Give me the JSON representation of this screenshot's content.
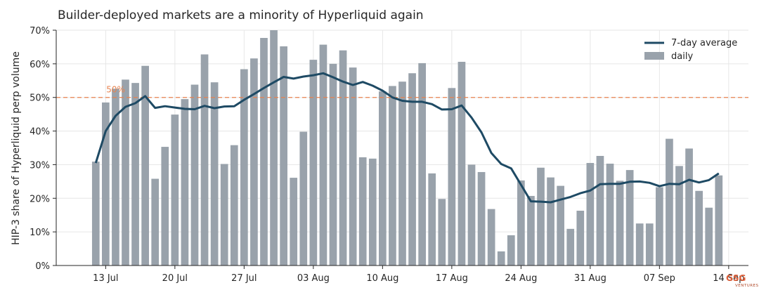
{
  "chart_data": {
    "type": "bar",
    "title": "Builder-deployed markets are a minority of Hyperliquid again",
    "ylabel": "HIP-3 share of Hyperliquid perp volume",
    "xlabel": "",
    "ylim": [
      0,
      70
    ],
    "yticks": [
      "0%",
      "10%",
      "20%",
      "30%",
      "40%",
      "50%",
      "60%",
      "70%"
    ],
    "x_range": [
      "2025-07-08",
      "2025-09-16"
    ],
    "xticks": [
      {
        "date": "2025-07-13",
        "label": "13 Jul"
      },
      {
        "date": "2025-07-20",
        "label": "20 Jul"
      },
      {
        "date": "2025-07-27",
        "label": "27 Jul"
      },
      {
        "date": "2025-08-03",
        "label": "03 Aug"
      },
      {
        "date": "2025-08-10",
        "label": "10 Aug"
      },
      {
        "date": "2025-08-17",
        "label": "17 Aug"
      },
      {
        "date": "2025-08-24",
        "label": "24 Aug"
      },
      {
        "date": "2025-08-31",
        "label": "31 Aug"
      },
      {
        "date": "2025-09-07",
        "label": "07 Sep"
      },
      {
        "date": "2025-09-14",
        "label": "14 Sep"
      }
    ],
    "start_date": "2025-07-12",
    "grid": true,
    "legend_position": "top-right",
    "reference_line": {
      "value": 50,
      "label": "50%",
      "color": "#e8834f",
      "style": "dashed"
    },
    "series": [
      {
        "name": "daily",
        "type": "bar",
        "color": "#99a2ab",
        "values": [
          30.9,
          48.5,
          52.6,
          55.3,
          54.3,
          59.4,
          25.8,
          35.3,
          44.9,
          49.5,
          53.8,
          62.8,
          54.5,
          30.2,
          35.8,
          58.4,
          61.6,
          67.7,
          70.3,
          65.2,
          26.1,
          39.8,
          61.2,
          65.7,
          60.0,
          64.0,
          58.9,
          32.2,
          31.8,
          51.8,
          53.4,
          54.7,
          57.2,
          60.2,
          27.4,
          19.8,
          52.8,
          60.6,
          30.0,
          27.8,
          16.8,
          4.2,
          9.0,
          25.3,
          20.7,
          29.1,
          26.2,
          23.7,
          10.9,
          16.3,
          30.5,
          32.6,
          30.3,
          25.2,
          28.4,
          12.5,
          12.5,
          23.3,
          37.7,
          29.6,
          34.8,
          22.2,
          17.2,
          26.8
        ]
      },
      {
        "name": "7-day average",
        "type": "line",
        "color": "#1e4a64",
        "values": [
          30.5,
          40.0,
          44.5,
          47.2,
          48.3,
          50.4,
          46.9,
          47.4,
          47.0,
          46.6,
          46.5,
          47.5,
          46.8,
          47.3,
          47.4,
          49.3,
          51.0,
          52.8,
          54.5,
          56.1,
          55.6,
          56.2,
          56.6,
          57.2,
          56.0,
          54.7,
          53.7,
          54.6,
          53.5,
          52.0,
          50.0,
          49.0,
          48.7,
          48.7,
          48.0,
          46.4,
          46.5,
          47.6,
          44.0,
          39.6,
          33.5,
          30.2,
          28.9,
          24.0,
          19.1,
          19.0,
          18.8,
          19.6,
          20.4,
          21.5,
          22.3,
          24.2,
          24.3,
          24.3,
          24.9,
          25.0,
          24.6,
          23.6,
          24.3,
          24.2,
          25.5,
          24.7,
          25.4,
          27.4
        ]
      }
    ]
  },
  "brand": {
    "logo_text": "GSG",
    "logo_subtext": "VENTURES",
    "colors": {
      "grid": "#e6e6e6",
      "axis": "#262626",
      "accent": "#e8834f"
    }
  }
}
